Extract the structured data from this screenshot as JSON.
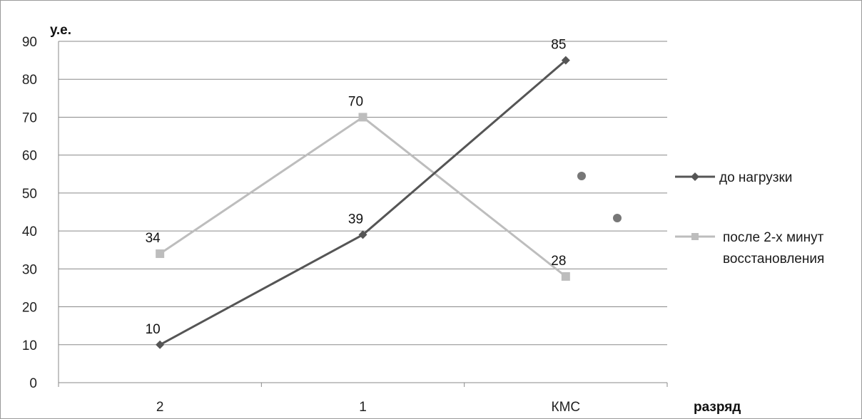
{
  "chart_data": {
    "type": "line",
    "categories": [
      "2",
      "1",
      "КМС"
    ],
    "series": [
      {
        "name": "до нагрузки",
        "values": [
          10,
          39,
          85
        ],
        "color": "#555555",
        "marker": "diamond"
      },
      {
        "name_lines": [
          "после 2-х минут",
          "восстановления"
        ],
        "values": [
          34,
          70,
          28
        ],
        "color": "#bdbdbd",
        "marker": "square"
      }
    ],
    "ylabel": "у.е.",
    "xlabel": "разряд",
    "ylim": [
      0,
      90
    ],
    "yticks": [
      0,
      10,
      20,
      30,
      40,
      50,
      60,
      70,
      80,
      90
    ],
    "grid": true,
    "legend": "right",
    "title": ""
  }
}
